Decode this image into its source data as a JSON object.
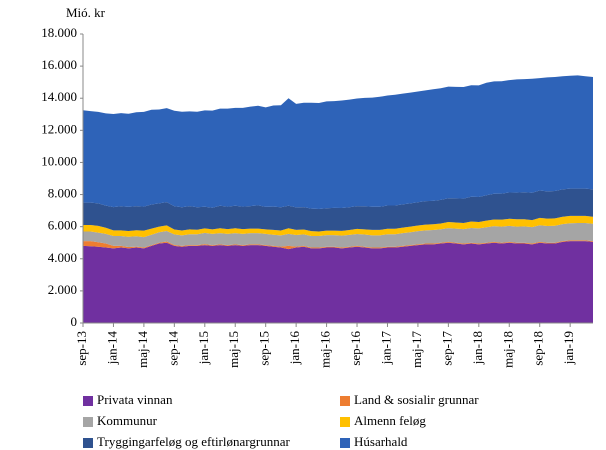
{
  "chart_data": {
    "type": "stacked_area",
    "y_label": "Mió. kr",
    "categories": [
      "sep-13",
      null,
      null,
      null,
      "jan-14",
      null,
      null,
      null,
      "maj-14",
      null,
      null,
      null,
      "sep-14",
      null,
      null,
      null,
      "jan-15",
      null,
      null,
      null,
      "maj-15",
      null,
      null,
      null,
      "sep-15",
      null,
      null,
      null,
      "jan-16",
      null,
      null,
      null,
      "maj-16",
      null,
      null,
      null,
      "sep-16",
      null,
      null,
      null,
      "jan-17",
      null,
      null,
      null,
      "maj-17",
      null,
      null,
      null,
      "sep-17",
      null,
      null,
      null,
      "jan-18",
      null,
      null,
      null,
      "maj-18",
      null,
      null,
      null,
      "sep-18",
      null,
      null,
      null,
      "jan-19",
      null,
      null,
      null
    ],
    "series": [
      {
        "name": "Privata vinnan",
        "color": "#7030a0",
        "values": [
          4800,
          4780,
          4750,
          4700,
          4650,
          4700,
          4650,
          4700,
          4650,
          4800,
          4950,
          5000,
          4800,
          4750,
          4800,
          4800,
          4850,
          4800,
          4850,
          4800,
          4850,
          4800,
          4850,
          4850,
          4800,
          4750,
          4700,
          4600,
          4700,
          4750,
          4650,
          4650,
          4700,
          4700,
          4650,
          4700,
          4750,
          4700,
          4650,
          4650,
          4700,
          4700,
          4750,
          4800,
          4850,
          4900,
          4900,
          4950,
          5000,
          4950,
          4900,
          4950,
          4900,
          4950,
          5000,
          4950,
          5000,
          4950,
          4950,
          4900,
          5000,
          4950,
          4950,
          5050,
          5100,
          5100,
          5100,
          5050
        ]
      },
      {
        "name": "Land & sosialir grunnar",
        "color": "#ed7d31",
        "values": [
          300,
          320,
          280,
          250,
          150,
          100,
          80,
          60,
          50,
          50,
          50,
          80,
          60,
          50,
          50,
          50,
          60,
          50,
          50,
          50,
          50,
          50,
          50,
          50,
          50,
          50,
          60,
          200,
          60,
          50,
          50,
          50,
          50,
          50,
          50,
          50,
          50,
          50,
          50,
          50,
          50,
          50,
          50,
          50,
          50,
          50,
          50,
          50,
          50,
          50,
          50,
          50,
          50,
          50,
          50,
          50,
          50,
          50,
          50,
          50,
          50,
          50,
          50,
          50,
          50,
          50,
          50,
          50
        ]
      },
      {
        "name": "Kommunur",
        "color": "#a5a5a5",
        "values": [
          600,
          600,
          600,
          600,
          620,
          620,
          640,
          640,
          650,
          650,
          650,
          650,
          660,
          660,
          680,
          680,
          700,
          700,
          700,
          700,
          700,
          700,
          700,
          700,
          700,
          700,
          700,
          750,
          720,
          720,
          720,
          720,
          720,
          720,
          740,
          740,
          740,
          760,
          760,
          760,
          780,
          780,
          800,
          800,
          820,
          820,
          840,
          840,
          860,
          880,
          900,
          920,
          940,
          960,
          980,
          1000,
          1000,
          1000,
          1020,
          1020,
          1040,
          1040,
          1060,
          1060,
          1060,
          1080,
          1080,
          1080
        ]
      },
      {
        "name": "Almenn feløg",
        "color": "#ffc000",
        "values": [
          400,
          400,
          420,
          380,
          350,
          350,
          360,
          380,
          400,
          380,
          350,
          350,
          300,
          300,
          300,
          280,
          280,
          280,
          300,
          300,
          300,
          300,
          280,
          280,
          280,
          300,
          300,
          350,
          320,
          300,
          300,
          280,
          280,
          280,
          300,
          300,
          320,
          320,
          340,
          340,
          340,
          340,
          340,
          350,
          350,
          360,
          360,
          360,
          380,
          380,
          380,
          400,
          400,
          420,
          420,
          440,
          440,
          460,
          440,
          440,
          460,
          460,
          460,
          460,
          460,
          440,
          440,
          440
        ]
      },
      {
        "name": "Tryggingarfeløg og eftirlønargrunnar",
        "color": "#2f528f",
        "values": [
          1400,
          1400,
          1400,
          1380,
          1450,
          1500,
          1500,
          1500,
          1500,
          1500,
          1450,
          1450,
          1450,
          1450,
          1450,
          1400,
          1350,
          1350,
          1400,
          1400,
          1400,
          1400,
          1400,
          1450,
          1400,
          1450,
          1450,
          1400,
          1400,
          1400,
          1400,
          1400,
          1400,
          1420,
          1420,
          1420,
          1420,
          1440,
          1440,
          1440,
          1450,
          1450,
          1450,
          1450,
          1450,
          1460,
          1460,
          1470,
          1480,
          1500,
          1520,
          1540,
          1560,
          1580,
          1600,
          1620,
          1640,
          1660,
          1680,
          1700,
          1700,
          1700,
          1700,
          1700,
          1700,
          1700,
          1700,
          1700
        ]
      },
      {
        "name": "Húsarhald",
        "color": "#2e63b8",
        "values": [
          5750,
          5700,
          5700,
          5750,
          5800,
          5800,
          5800,
          5850,
          5900,
          5900,
          5850,
          5850,
          5950,
          5950,
          5900,
          5950,
          6000,
          6050,
          6050,
          6100,
          6100,
          6150,
          6200,
          6200,
          6200,
          6300,
          6350,
          6700,
          6450,
          6500,
          6600,
          6600,
          6650,
          6650,
          6700,
          6700,
          6700,
          6750,
          6800,
          6850,
          6850,
          6900,
          6900,
          6900,
          6900,
          6900,
          6950,
          6950,
          6950,
          6950,
          6950,
          6950,
          6950,
          7000,
          7000,
          7000,
          7000,
          7050,
          7050,
          7100,
          7000,
          7100,
          7100,
          7050,
          7030,
          7050,
          7000,
          7000
        ]
      }
    ],
    "ylim": [
      0,
      18000
    ],
    "yticks": [
      0,
      {
        "value": 2000,
        "label": "2.000"
      },
      {
        "value": 4000,
        "label": "4.000"
      },
      {
        "value": 6000,
        "label": "6.000"
      },
      {
        "value": 8000,
        "label": "8.000"
      },
      {
        "value": 10000,
        "label": "10.000"
      },
      {
        "value": 12000,
        "label": "12.000"
      },
      {
        "value": 14000,
        "label": "14.000"
      },
      {
        "value": 16000,
        "label": "16.000"
      },
      {
        "value": 18000,
        "label": "18.000"
      }
    ],
    "grid": false
  }
}
